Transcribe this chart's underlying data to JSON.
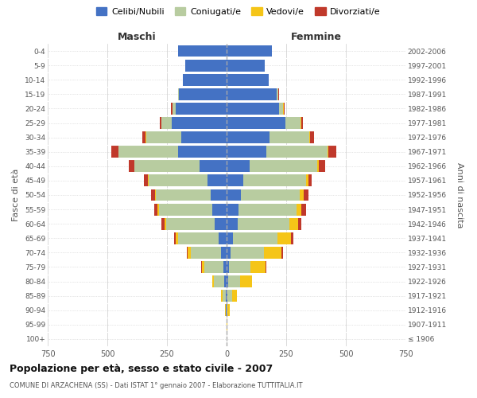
{
  "age_groups": [
    "100+",
    "95-99",
    "90-94",
    "85-89",
    "80-84",
    "75-79",
    "70-74",
    "65-69",
    "60-64",
    "55-59",
    "50-54",
    "45-49",
    "40-44",
    "35-39",
    "30-34",
    "25-29",
    "20-24",
    "15-19",
    "10-14",
    "5-9",
    "0-4"
  ],
  "birth_years": [
    "≤ 1906",
    "1907-1911",
    "1912-1916",
    "1917-1921",
    "1922-1926",
    "1927-1931",
    "1932-1936",
    "1937-1941",
    "1942-1946",
    "1947-1951",
    "1952-1956",
    "1957-1961",
    "1962-1966",
    "1967-1971",
    "1972-1976",
    "1977-1981",
    "1982-1986",
    "1987-1991",
    "1992-1996",
    "1997-2001",
    "2002-2006"
  ],
  "maschi_celibe": [
    0,
    0,
    2,
    4,
    10,
    15,
    25,
    35,
    50,
    60,
    68,
    80,
    115,
    205,
    190,
    230,
    215,
    200,
    182,
    172,
    202
  ],
  "maschi_coniugato": [
    0,
    1,
    3,
    14,
    42,
    80,
    125,
    170,
    205,
    225,
    228,
    248,
    272,
    248,
    148,
    42,
    12,
    4,
    2,
    1,
    1
  ],
  "maschi_vedovo": [
    0,
    0,
    2,
    4,
    8,
    10,
    12,
    8,
    6,
    4,
    3,
    2,
    1,
    1,
    1,
    1,
    1,
    0,
    0,
    0,
    0
  ],
  "maschi_divorziato": [
    0,
    0,
    0,
    0,
    0,
    3,
    4,
    7,
    11,
    16,
    18,
    16,
    22,
    28,
    13,
    8,
    4,
    1,
    0,
    0,
    0
  ],
  "femmine_celibe": [
    0,
    0,
    1,
    4,
    6,
    10,
    18,
    28,
    45,
    50,
    60,
    70,
    95,
    165,
    180,
    245,
    220,
    210,
    175,
    160,
    190
  ],
  "femmine_coniugata": [
    0,
    1,
    3,
    18,
    50,
    90,
    140,
    185,
    218,
    242,
    248,
    262,
    285,
    258,
    168,
    65,
    18,
    7,
    2,
    1,
    1
  ],
  "femmine_vedova": [
    1,
    2,
    8,
    22,
    52,
    62,
    72,
    58,
    38,
    22,
    16,
    10,
    6,
    4,
    3,
    2,
    1,
    1,
    0,
    0,
    0
  ],
  "femmine_divorziata": [
    0,
    0,
    0,
    0,
    0,
    3,
    5,
    9,
    13,
    18,
    20,
    16,
    26,
    32,
    16,
    8,
    4,
    1,
    0,
    0,
    0
  ],
  "color_celibe": "#4472c4",
  "color_coniugato": "#b8cca0",
  "color_vedovo": "#f5c518",
  "color_divorziato": "#c0392b",
  "title": "Popolazione per età, sesso e stato civile - 2007",
  "subtitle": "COMUNE DI ARZACHENA (SS) - Dati ISTAT 1° gennaio 2007 - Elaborazione TUTTITALIA.IT",
  "xlabel_left": "Maschi",
  "xlabel_right": "Femmine",
  "ylabel_left": "Fasce di età",
  "ylabel_right": "Anni di nascita",
  "xlim": 750,
  "legend_labels": [
    "Celibi/Nubili",
    "Coniugati/e",
    "Vedovi/e",
    "Divorziati/e"
  ],
  "background_color": "#ffffff",
  "grid_color": "#cccccc"
}
